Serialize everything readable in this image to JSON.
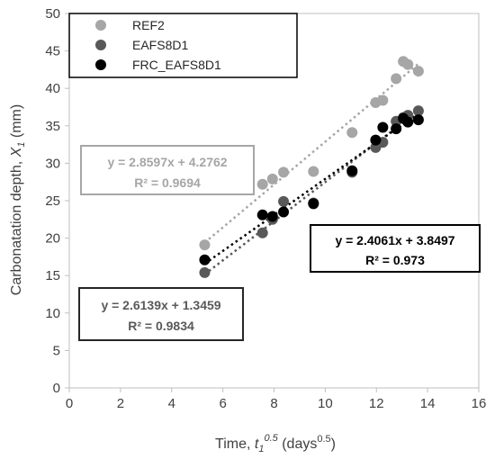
{
  "chart_data": {
    "type": "scatter",
    "xlabel": {
      "prefix": "Time, ",
      "var": "t",
      "sub": "1",
      "sup": "0.5",
      "suffix_open": " (days",
      "suffix_sup": "0.5",
      "suffix_close": ")"
    },
    "ylabel": {
      "prefix": "Carbonatation depth, ",
      "var": "X",
      "sub": "1",
      "suffix": " (mm)"
    },
    "xlim": [
      0,
      16
    ],
    "ylim": [
      0,
      50
    ],
    "xticks": [
      "0",
      "2",
      "4",
      "6",
      "8",
      "10",
      "12",
      "14",
      "16"
    ],
    "yticks": [
      "0",
      "5",
      "10",
      "15",
      "20",
      "25",
      "30",
      "35",
      "40",
      "45",
      "50"
    ],
    "xtick_values": [
      0,
      2,
      4,
      6,
      8,
      10,
      12,
      14,
      16
    ],
    "ytick_values": [
      0,
      5,
      10,
      15,
      20,
      25,
      30,
      35,
      40,
      45,
      50
    ],
    "grid": false,
    "legend_position": "top-left",
    "series": [
      {
        "name": "REF2",
        "color": "#a6a6a6",
        "trend": {
          "slope": 2.8597,
          "intercept": 4.2762,
          "x_range": [
            5.29,
            13.64
          ]
        },
        "equation": "y = 2.8597x + 4.2762",
        "r2": "R² = 0.9694",
        "points": [
          [
            5.29,
            19.1
          ],
          [
            7.55,
            27.2
          ],
          [
            7.94,
            27.9
          ],
          [
            8.37,
            28.8
          ],
          [
            9.54,
            28.9
          ],
          [
            11.05,
            34.1
          ],
          [
            11.97,
            38.1
          ],
          [
            12.25,
            38.4
          ],
          [
            12.77,
            41.3
          ],
          [
            13.05,
            43.6
          ],
          [
            13.23,
            43.2
          ],
          [
            13.64,
            42.3
          ]
        ]
      },
      {
        "name": "EAFS8D1",
        "color": "#595959",
        "trend": {
          "slope": 2.6139,
          "intercept": 1.3459,
          "x_range": [
            5.29,
            13.64
          ]
        },
        "equation": "y = 2.6139x + 1.3459",
        "r2": "R² = 0.9834",
        "points": [
          [
            5.29,
            15.4
          ],
          [
            7.55,
            20.7
          ],
          [
            7.94,
            22.5
          ],
          [
            8.37,
            24.9
          ],
          [
            9.54,
            24.7
          ],
          [
            11.05,
            28.8
          ],
          [
            11.97,
            32.1
          ],
          [
            12.25,
            32.8
          ],
          [
            12.77,
            35.6
          ],
          [
            13.05,
            36.1
          ],
          [
            13.23,
            36.4
          ],
          [
            13.64,
            37.0
          ]
        ]
      },
      {
        "name": "FRC_EAFS8D1",
        "color": "#000000",
        "trend": {
          "slope": 2.4061,
          "intercept": 3.8497,
          "x_range": [
            5.29,
            13.64
          ]
        },
        "equation": "y = 2.4061x + 3.8497",
        "r2": "R² = 0.973",
        "points": [
          [
            5.29,
            17.1
          ],
          [
            7.55,
            23.1
          ],
          [
            7.94,
            22.9
          ],
          [
            8.37,
            23.5
          ],
          [
            9.54,
            24.6
          ],
          [
            11.05,
            29.0
          ],
          [
            11.97,
            33.1
          ],
          [
            12.25,
            34.8
          ],
          [
            12.77,
            34.6
          ],
          [
            13.05,
            36.0
          ],
          [
            13.23,
            35.5
          ],
          [
            13.64,
            35.8
          ]
        ]
      }
    ]
  }
}
